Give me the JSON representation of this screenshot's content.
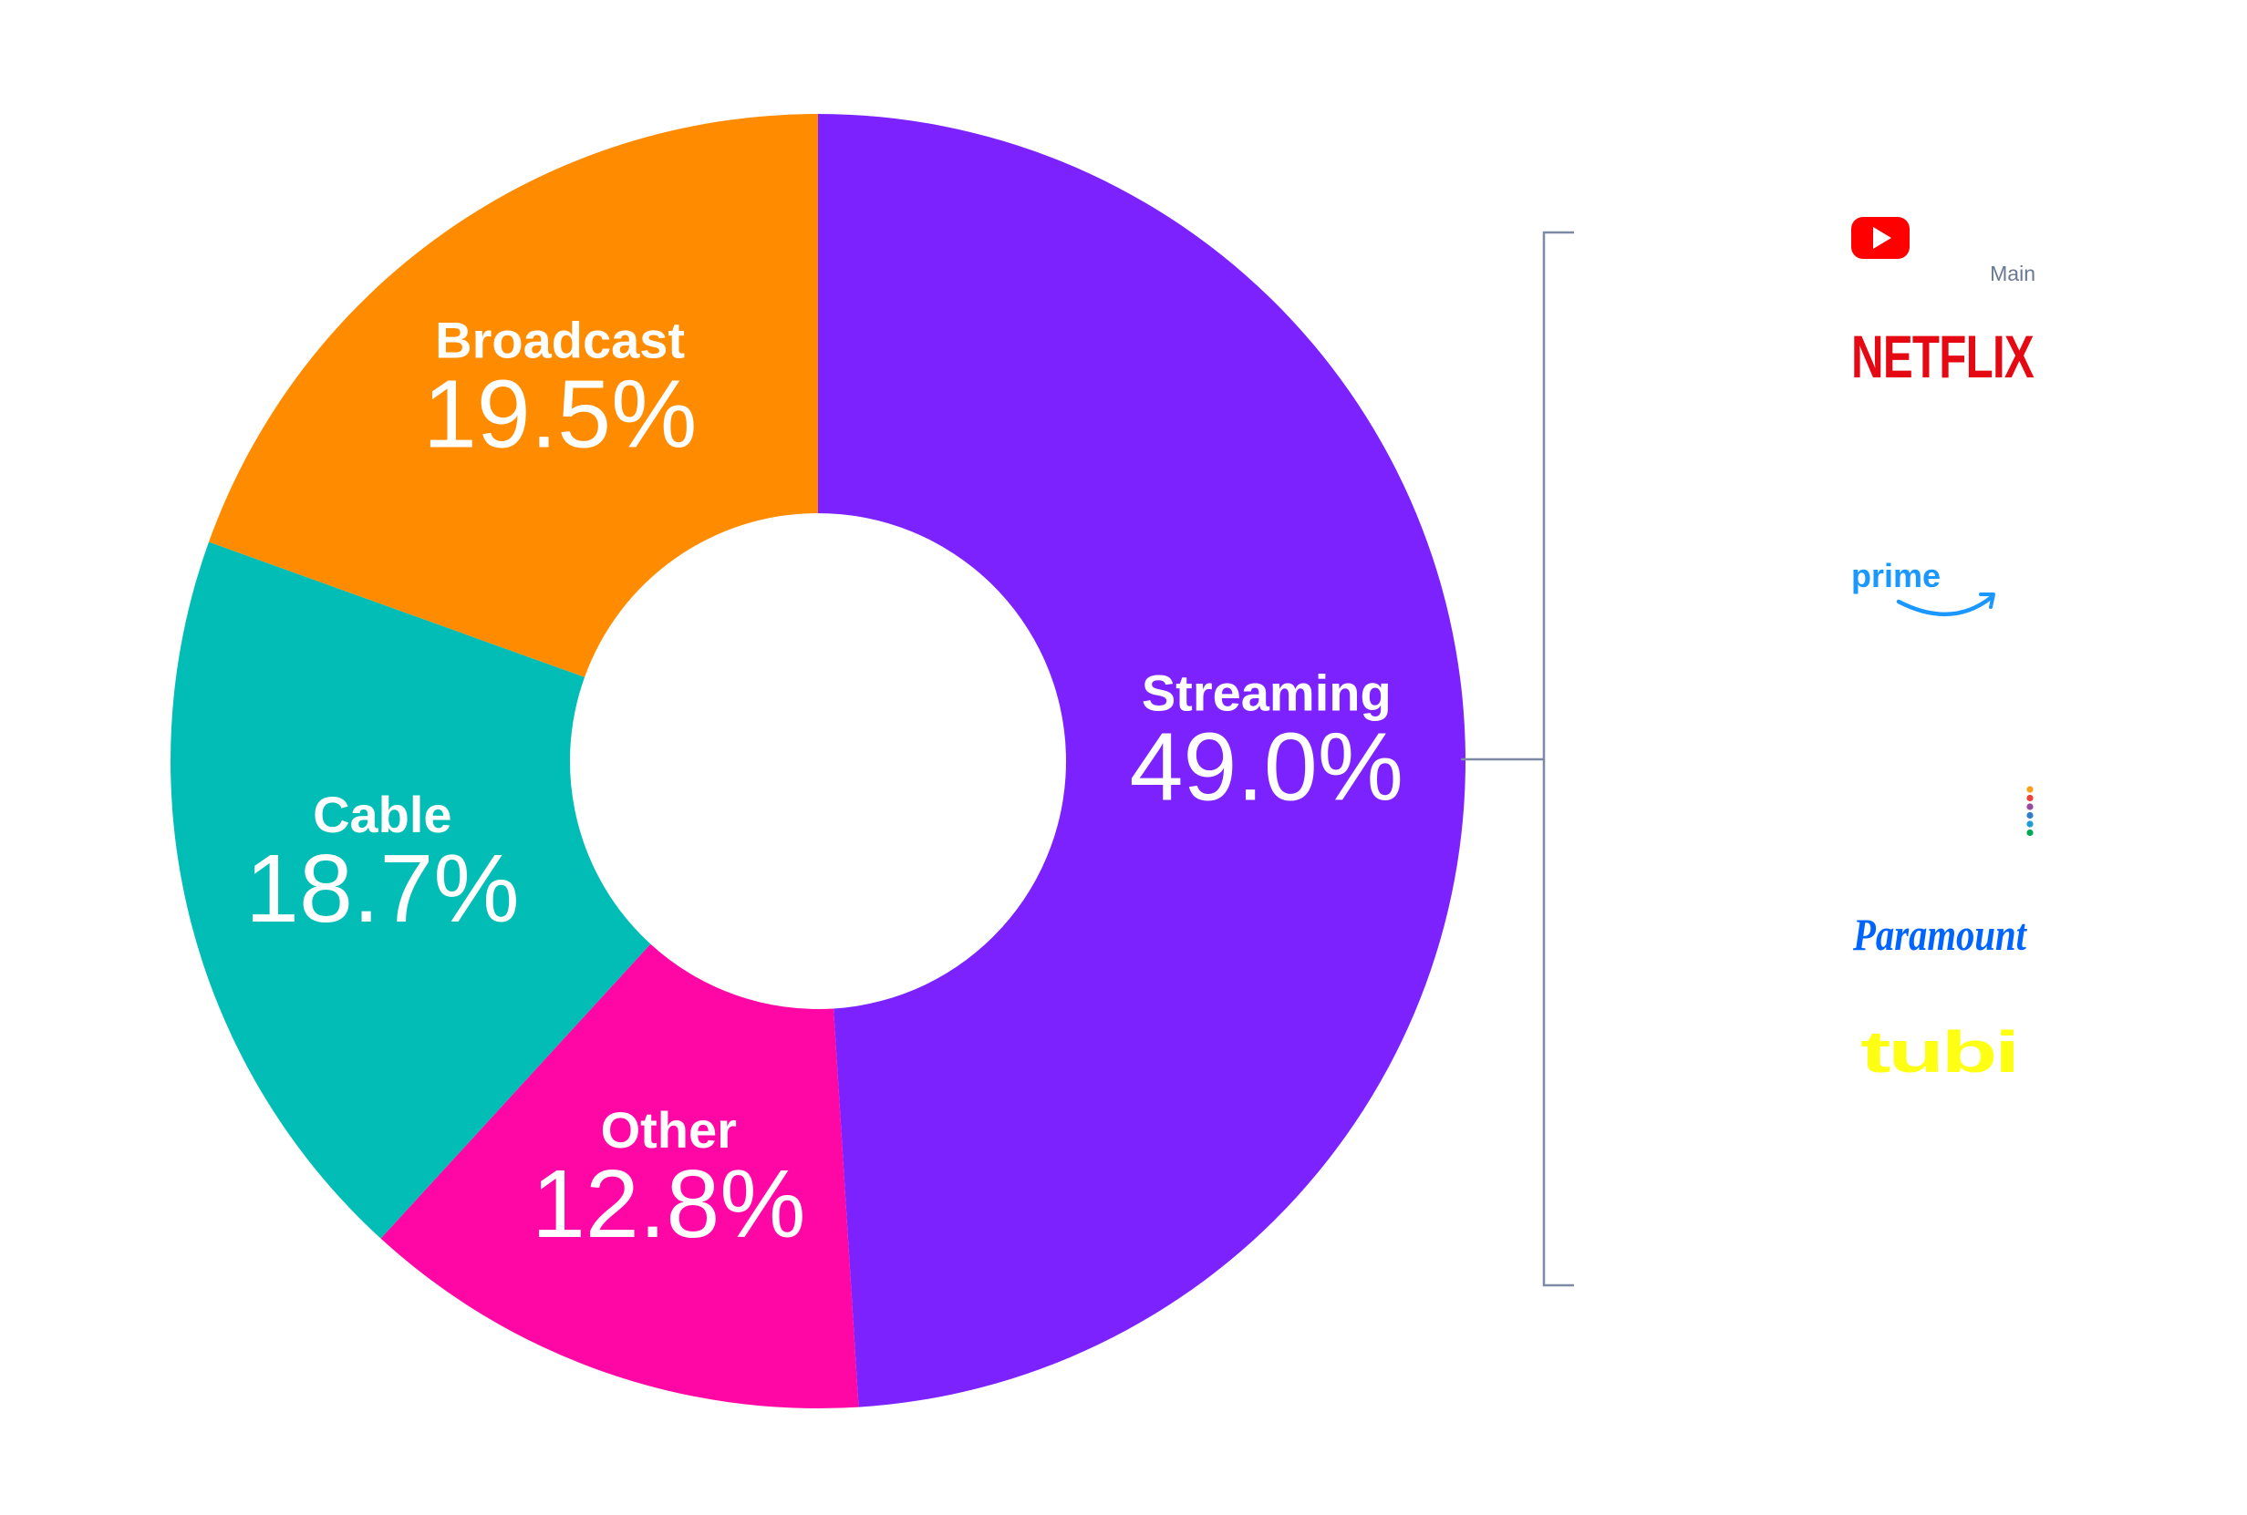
{
  "chart_data": {
    "type": "pie",
    "style": "donut",
    "title": "",
    "categories": [
      "Streaming",
      "Other",
      "Cable",
      "Broadcast"
    ],
    "values": [
      49.0,
      12.8,
      18.7,
      19.5
    ],
    "value_labels": [
      "49.0%",
      "12.8%",
      "18.7%",
      "19.5%"
    ],
    "colors": [
      "#7b22ff",
      "#ff07a4",
      "#02bdb6",
      "#ff8c00"
    ],
    "label_color": "#ffffff",
    "start": "12 o'clock",
    "direction": "clockwise",
    "legend": "none"
  },
  "streaming_breakdown": {
    "note": "Main",
    "bracket_color": "#7c8aa5",
    "logos": [
      {
        "name": "youtube-logo",
        "icon": "youtube-icon",
        "color": "#ff0000"
      },
      {
        "name": "netflix-logo",
        "text": "NETFLIX",
        "color": "#e50914"
      },
      {
        "name": "prime-video-logo",
        "text": "prime",
        "color": "#1a98ff"
      },
      {
        "name": "peacock-logo",
        "icon": "peacock-dots-icon",
        "dot_colors": [
          "#f9a11b",
          "#ef4137",
          "#9a48a2",
          "#2f7ec7",
          "#1f9cd8",
          "#06a857"
        ]
      },
      {
        "name": "paramount-logo",
        "text": "Paramount",
        "color": "#0064ff"
      },
      {
        "name": "tubi-logo",
        "text": "tubi",
        "color": "#ffff13"
      }
    ]
  }
}
